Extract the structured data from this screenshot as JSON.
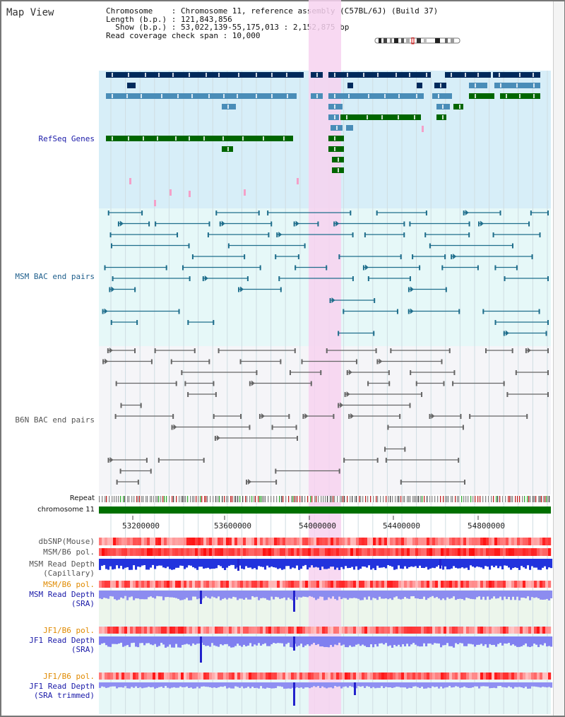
{
  "view_title": "Map View",
  "info": {
    "chromosome_line": "Chromosome    : Chromosome 11, reference assembly (C57BL/6J) (Build 37)",
    "length_line": "Length (b.p.) : 121,843,856",
    "show_line": "  Show (b.p.) : 53,022,139-55,175,013 : 2,152,875 bp",
    "read_line": "Read coverage check span : 10,000"
  },
  "tracks": {
    "refseq": "RefSeq Genes",
    "msm_bac": "MSM BAC end pairs",
    "b6n_bac": "B6N BAC end pairs",
    "repeat": "Repeat",
    "chromosome": "chromosome 11",
    "dbsnp": "dbSNP(Mouse)",
    "msm_b6_pol": "MSM/B6 pol.",
    "msm_rd_cap_1": "MSM Read Depth",
    "msm_rd_cap_2": "(Capillary)",
    "msm_b6_pol_2": "MSM/B6 pol.",
    "msm_rd_sra_1": "MSM Read Depth",
    "msm_rd_sra_2": "(SRA)",
    "jf1_b6_pol": "JF1/B6 pol.",
    "jf1_rd_sra_1": "JF1 Read Depth",
    "jf1_rd_sra_2": "(SRA)",
    "jf1_b6_pol_2": "JF1/B6 pol.",
    "jf1_rd_trim_1": "JF1 Read Depth",
    "jf1_rd_trim_2": "(SRA trimmed)"
  },
  "axis_ticks": [
    "53200000",
    "53600000",
    "54000000",
    "54400000",
    "54800000"
  ],
  "colors": {
    "gene_dark": "#002a5c",
    "gene_mid": "#4a8db8",
    "gene_green": "#006600",
    "msm_bac": "#1f6e8c",
    "b6n_bac": "#666666",
    "highlight": "#f7d2f0",
    "label_blue": "#1a1aa8",
    "label_orange": "#e08a00",
    "label_teal": "#1f5f8c",
    "label_gray": "#555555"
  }
}
